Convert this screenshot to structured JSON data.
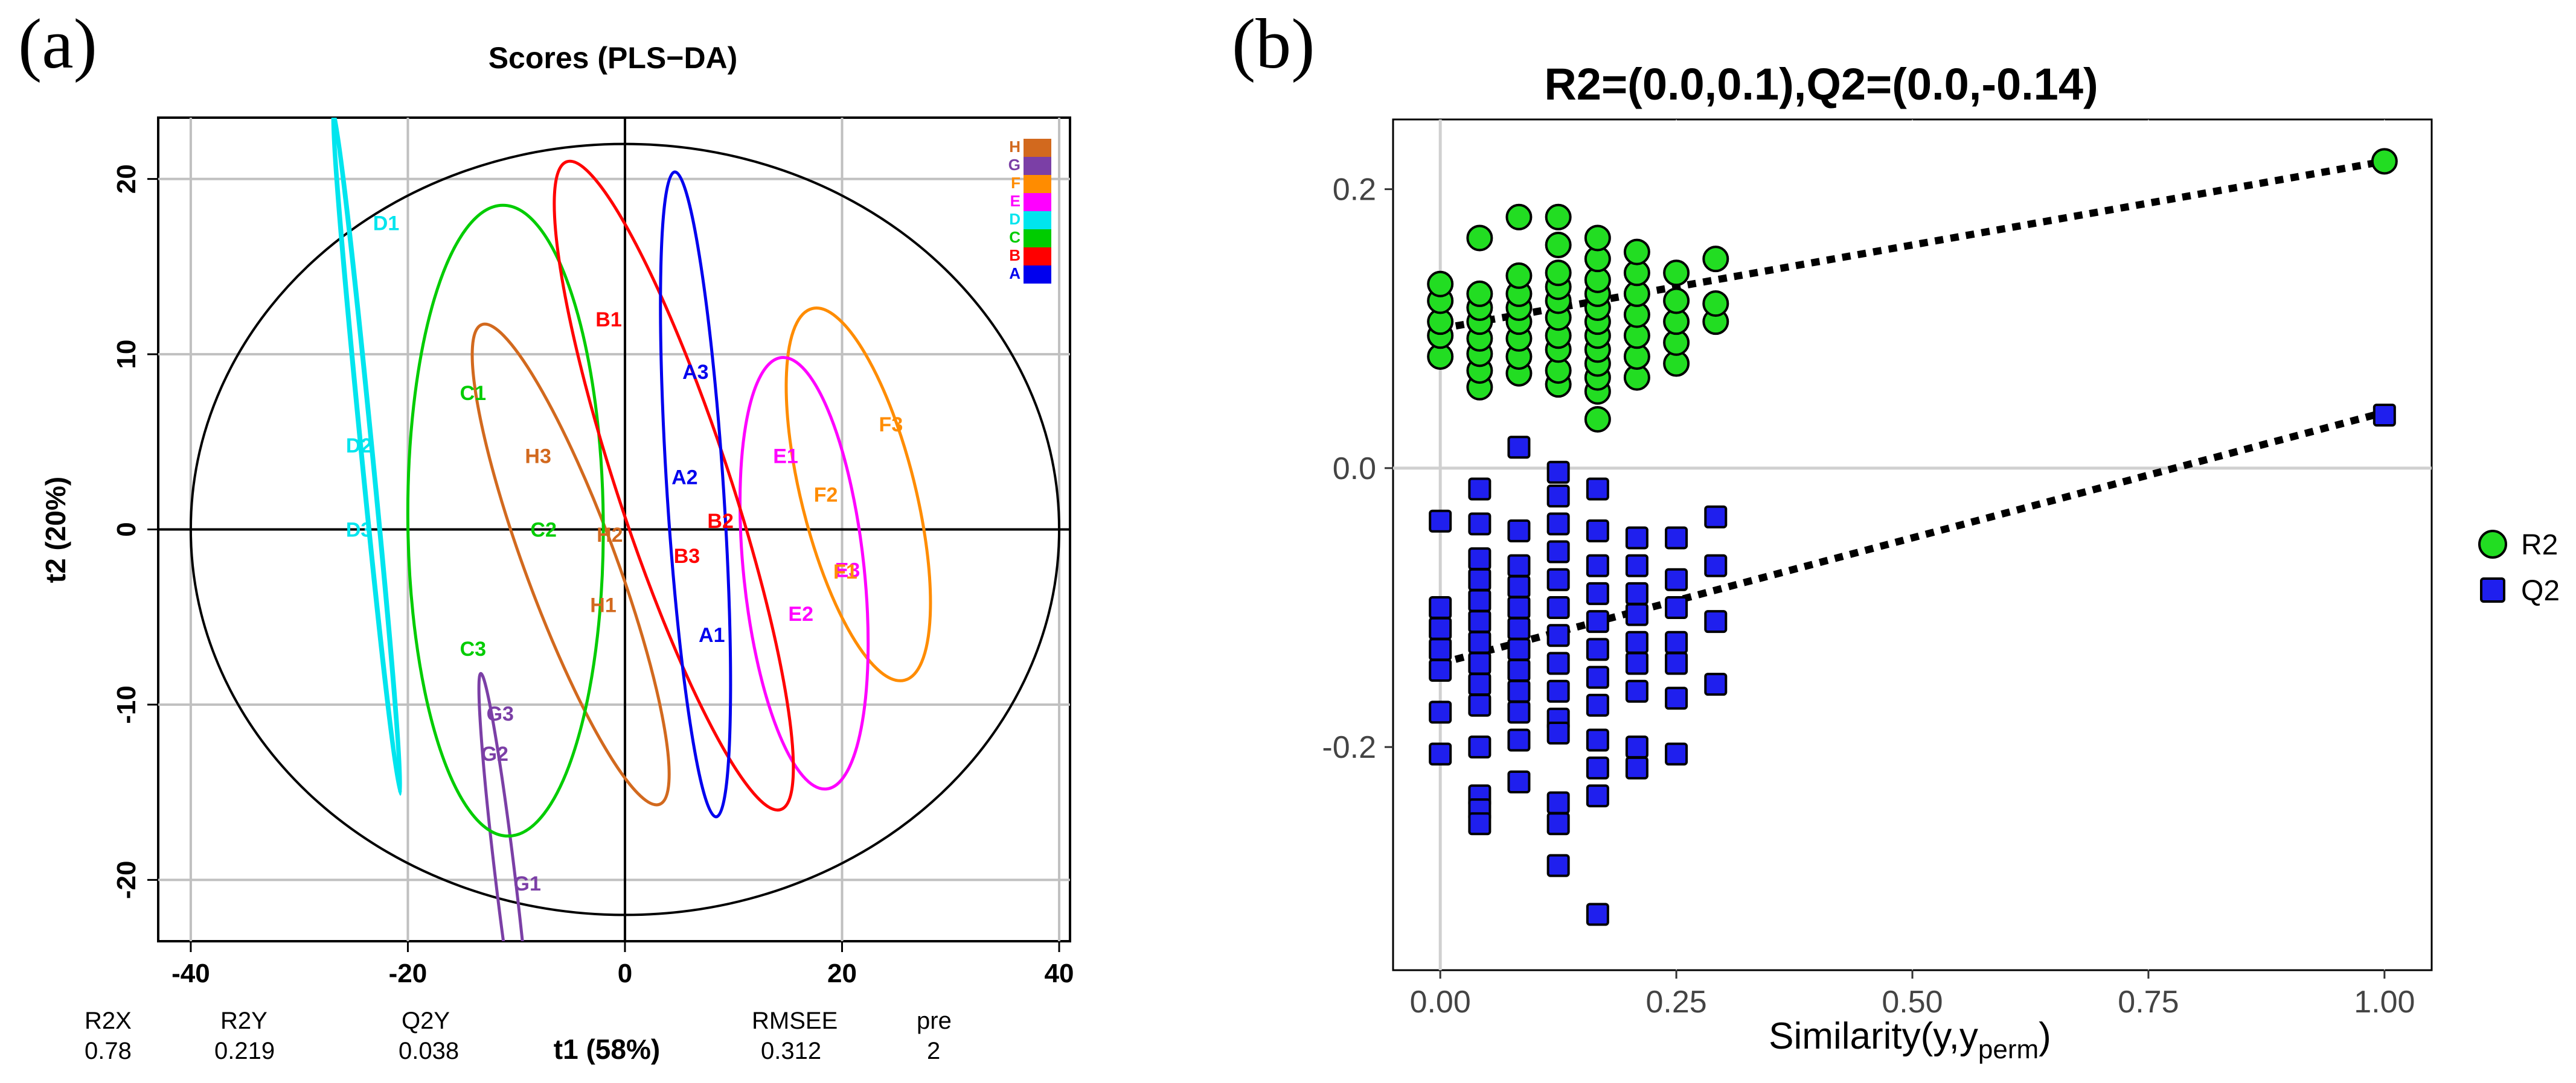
{
  "figure": {
    "label_a": "(a)",
    "label_b": "(b)"
  },
  "chart_data": [
    {
      "type": "scatter",
      "title": "Scores (PLS−DA)",
      "xlabel": "t1 (58%)",
      "ylabel": "t2 (20%)",
      "xlim": [
        -43,
        41
      ],
      "ylim": [
        -23.5,
        23.5
      ],
      "xticks": [
        -40,
        -20,
        0,
        20,
        40
      ],
      "yticks": [
        -20,
        -10,
        0,
        10,
        20
      ],
      "grid": true,
      "hotelling_ellipse": {
        "rx": 40,
        "ry": 22
      },
      "groups": [
        {
          "name": "H",
          "color": "#d2691e",
          "center": [
            -5,
            -2
          ],
          "rx": 16,
          "ry": 3.8,
          "angle": -58
        },
        {
          "name": "G",
          "color": "#7b3fa6",
          "center": [
            -11,
            -20
          ],
          "rx": 12,
          "ry": 0.9,
          "angle": -79
        },
        {
          "name": "F",
          "color": "#ff8c00",
          "center": [
            21.5,
            2
          ],
          "rx": 11.5,
          "ry": 5.0,
          "angle": -65
        },
        {
          "name": "E",
          "color": "#ff00ff",
          "center": [
            16.5,
            -2.5
          ],
          "rx": 12.5,
          "ry": 5.5,
          "angle": -79
        },
        {
          "name": "D",
          "color": "#00e5ee",
          "center": [
            -23.8,
            4.5
          ],
          "rx": 19.8,
          "ry": 0.5,
          "angle": -81
        },
        {
          "name": "C",
          "color": "#00cc00",
          "center": [
            -11,
            0.5
          ],
          "rx": 18,
          "ry": 9,
          "angle": -89
        },
        {
          "name": "B",
          "color": "#ff0000",
          "center": [
            4.5,
            2.5
          ],
          "rx": 21,
          "ry": 4.8,
          "angle": -61
        },
        {
          "name": "A",
          "color": "#0000ee",
          "center": [
            6.5,
            2
          ],
          "rx": 18.5,
          "ry": 2.6,
          "angle": -84
        }
      ],
      "points": [
        {
          "label": "A1",
          "group": "A",
          "x": 8,
          "y": -6
        },
        {
          "label": "A2",
          "group": "A",
          "x": 5.5,
          "y": 3
        },
        {
          "label": "A3",
          "group": "A",
          "x": 6.5,
          "y": 9
        },
        {
          "label": "B1",
          "group": "B",
          "x": -1.5,
          "y": 12
        },
        {
          "label": "B2",
          "group": "B",
          "x": 8.8,
          "y": 0.5
        },
        {
          "label": "B3",
          "group": "B",
          "x": 5.7,
          "y": -1.5
        },
        {
          "label": "C1",
          "group": "C",
          "x": -14,
          "y": 7.8
        },
        {
          "label": "C2",
          "group": "C",
          "x": -7.5,
          "y": 0
        },
        {
          "label": "C3",
          "group": "C",
          "x": -14,
          "y": -6.8
        },
        {
          "label": "D1",
          "group": "D",
          "x": -22,
          "y": 17.5
        },
        {
          "label": "D2",
          "group": "D",
          "x": -24.5,
          "y": 4.8
        },
        {
          "label": "D3",
          "group": "D",
          "x": -24.5,
          "y": 0
        },
        {
          "label": "E1",
          "group": "E",
          "x": 14.8,
          "y": 4.2
        },
        {
          "label": "E2",
          "group": "E",
          "x": 16.2,
          "y": -4.8
        },
        {
          "label": "E3",
          "group": "E",
          "x": 20.5,
          "y": -2.3
        },
        {
          "label": "F1",
          "group": "F",
          "x": 20.3,
          "y": -2.4
        },
        {
          "label": "F2",
          "group": "F",
          "x": 18.5,
          "y": 2
        },
        {
          "label": "F3",
          "group": "F",
          "x": 24.5,
          "y": 6
        },
        {
          "label": "G1",
          "group": "G",
          "x": -9,
          "y": -20.2
        },
        {
          "label": "G2",
          "group": "G",
          "x": -12,
          "y": -12.8
        },
        {
          "label": "G3",
          "group": "G",
          "x": -11.5,
          "y": -10.5
        },
        {
          "label": "H1",
          "group": "H",
          "x": -2,
          "y": -4.3
        },
        {
          "label": "H2",
          "group": "H",
          "x": -1.4,
          "y": -0.3
        },
        {
          "label": "H3",
          "group": "H",
          "x": -8,
          "y": 4.2
        }
      ],
      "legend": [
        "H",
        "G",
        "F",
        "E",
        "D",
        "C",
        "B",
        "A"
      ],
      "stats": {
        "headers": [
          "R2X",
          "R2Y",
          "Q2Y",
          "RMSEE",
          "pre"
        ],
        "values": [
          "0.78",
          "0.219",
          "0.038",
          "0.312",
          "2"
        ]
      }
    },
    {
      "type": "scatter",
      "title": "R2=(0.0,0.1),Q2=(0.0,-0.14)",
      "xlabel": "Similarity(y,y",
      "xlabel_sub": "perm",
      "xlabel_close": ")",
      "ylabel": "",
      "xlim": [
        -0.05,
        1.05
      ],
      "ylim": [
        -0.36,
        0.25
      ],
      "xticks": [
        "0.00",
        "0.25",
        "0.50",
        "0.75",
        "1.00"
      ],
      "yticks": [
        "-0.2",
        "0.0",
        "0.2"
      ],
      "grid": true,
      "legend": [
        "R2",
        "Q2"
      ],
      "colors": {
        "R2": "#22dd22",
        "Q2": "#1f1fee"
      },
      "trend_lines": [
        {
          "series": "R2",
          "from": [
            0.0,
            0.1
          ],
          "to": [
            1.0,
            0.22
          ]
        },
        {
          "series": "Q2",
          "from": [
            0.0,
            -0.14
          ],
          "to": [
            1.0,
            0.04
          ]
        }
      ],
      "series": [
        {
          "name": "R2",
          "marker": "circle",
          "columns": [
            {
              "x": 0.0,
              "y": [
                0.08,
                0.095,
                0.105,
                0.12,
                0.132
              ]
            },
            {
              "x": 0.0417,
              "y": [
                0.058,
                0.07,
                0.082,
                0.093,
                0.105,
                0.115,
                0.125,
                0.165
              ]
            },
            {
              "x": 0.0833,
              "y": [
                0.068,
                0.08,
                0.093,
                0.105,
                0.115,
                0.125,
                0.138,
                0.18
              ]
            },
            {
              "x": 0.125,
              "y": [
                0.06,
                0.07,
                0.085,
                0.095,
                0.108,
                0.12,
                0.13,
                0.14,
                0.16,
                0.18
              ]
            },
            {
              "x": 0.1667,
              "y": [
                0.035,
                0.055,
                0.065,
                0.075,
                0.085,
                0.095,
                0.105,
                0.115,
                0.125,
                0.135,
                0.15,
                0.165
              ]
            },
            {
              "x": 0.2083,
              "y": [
                0.065,
                0.08,
                0.095,
                0.11,
                0.125,
                0.14,
                0.155
              ]
            },
            {
              "x": 0.25,
              "y": [
                0.075,
                0.09,
                0.105,
                0.12,
                0.14
              ]
            },
            {
              "x": 0.2917,
              "y": [
                0.105,
                0.118,
                0.15
              ]
            },
            {
              "x": 1.0,
              "y": [
                0.22
              ]
            }
          ]
        },
        {
          "name": "Q2",
          "marker": "square",
          "columns": [
            {
              "x": 0.0,
              "y": [
                -0.038,
                -0.1,
                -0.115,
                -0.13,
                -0.145,
                -0.175,
                -0.205
              ]
            },
            {
              "x": 0.0417,
              "y": [
                -0.015,
                -0.04,
                -0.065,
                -0.08,
                -0.095,
                -0.11,
                -0.125,
                -0.14,
                -0.155,
                -0.17,
                -0.2,
                -0.235,
                -0.245,
                -0.255
              ]
            },
            {
              "x": 0.0833,
              "y": [
                0.015,
                -0.045,
                -0.07,
                -0.085,
                -0.1,
                -0.115,
                -0.13,
                -0.145,
                -0.16,
                -0.175,
                -0.195,
                -0.225
              ]
            },
            {
              "x": 0.125,
              "y": [
                -0.003,
                -0.02,
                -0.04,
                -0.06,
                -0.08,
                -0.1,
                -0.12,
                -0.14,
                -0.16,
                -0.18,
                -0.19,
                -0.24,
                -0.255,
                -0.285
              ]
            },
            {
              "x": 0.1667,
              "y": [
                -0.015,
                -0.045,
                -0.07,
                -0.09,
                -0.11,
                -0.13,
                -0.15,
                -0.17,
                -0.195,
                -0.215,
                -0.235,
                -0.32
              ]
            },
            {
              "x": 0.2083,
              "y": [
                -0.05,
                -0.07,
                -0.09,
                -0.105,
                -0.125,
                -0.14,
                -0.16,
                -0.2,
                -0.215
              ]
            },
            {
              "x": 0.25,
              "y": [
                -0.05,
                -0.08,
                -0.1,
                -0.125,
                -0.14,
                -0.165,
                -0.205
              ]
            },
            {
              "x": 0.2917,
              "y": [
                -0.035,
                -0.07,
                -0.11,
                -0.155
              ]
            },
            {
              "x": 1.0,
              "y": [
                0.038
              ]
            }
          ]
        }
      ]
    }
  ]
}
